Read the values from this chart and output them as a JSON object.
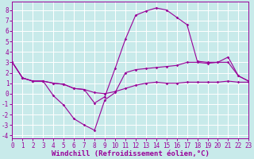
{
  "x_ticks": [
    0,
    1,
    2,
    3,
    4,
    5,
    6,
    7,
    8,
    9,
    10,
    11,
    12,
    13,
    14,
    15,
    16,
    17,
    18,
    19,
    20,
    21,
    22,
    23
  ],
  "ylim": [
    -4.3,
    8.8
  ],
  "yticks": [
    -4,
    -3,
    -2,
    -1,
    0,
    1,
    2,
    3,
    4,
    5,
    6,
    7,
    8
  ],
  "xlim": [
    0,
    23
  ],
  "curve_temp_x": [
    0,
    1,
    2,
    3,
    4,
    5,
    6,
    7,
    8,
    9,
    10,
    11,
    12,
    13,
    14,
    15,
    16,
    17,
    18,
    19,
    20,
    21,
    22,
    23
  ],
  "curve_temp_y": [
    3.0,
    1.5,
    1.2,
    1.2,
    1.0,
    0.9,
    0.5,
    0.4,
    -0.9,
    -0.3,
    2.4,
    5.2,
    7.5,
    7.9,
    8.2,
    8.0,
    7.3,
    6.6,
    3.1,
    3.0,
    3.0,
    3.5,
    1.7,
    1.2
  ],
  "curve_wc_x": [
    0,
    1,
    2,
    3,
    4,
    5,
    6,
    7,
    8,
    9,
    10,
    11,
    12,
    13,
    14,
    15,
    16,
    17,
    18,
    19,
    20,
    21,
    22,
    23
  ],
  "curve_wc_y": [
    3.0,
    1.5,
    1.2,
    1.2,
    -0.2,
    -1.1,
    -2.4,
    -3.0,
    -3.5,
    -0.6,
    0.1,
    2.0,
    2.3,
    2.4,
    2.5,
    2.6,
    2.7,
    3.0,
    3.0,
    2.9,
    3.0,
    3.0,
    1.7,
    1.2
  ],
  "curve_flat_x": [
    0,
    1,
    2,
    3,
    4,
    5,
    6,
    7,
    8,
    9,
    10,
    11,
    12,
    13,
    14,
    15,
    16,
    17,
    18,
    19,
    20,
    21,
    22,
    23
  ],
  "curve_flat_y": [
    3.0,
    1.5,
    1.2,
    1.2,
    1.0,
    0.9,
    0.5,
    0.4,
    0.1,
    0.0,
    0.2,
    0.5,
    0.8,
    1.0,
    1.1,
    1.0,
    1.0,
    1.1,
    1.1,
    1.1,
    1.1,
    1.2,
    1.1,
    1.1
  ],
  "line_color": "#990099",
  "bg_color": "#c8eaea",
  "grid_color": "#ffffff",
  "xlabel": "Windchill (Refroidissement éolien,°C)",
  "xlabel_fontsize": 6.5,
  "tick_fontsize": 5.5,
  "tick_color": "#990099",
  "label_color": "#990099"
}
